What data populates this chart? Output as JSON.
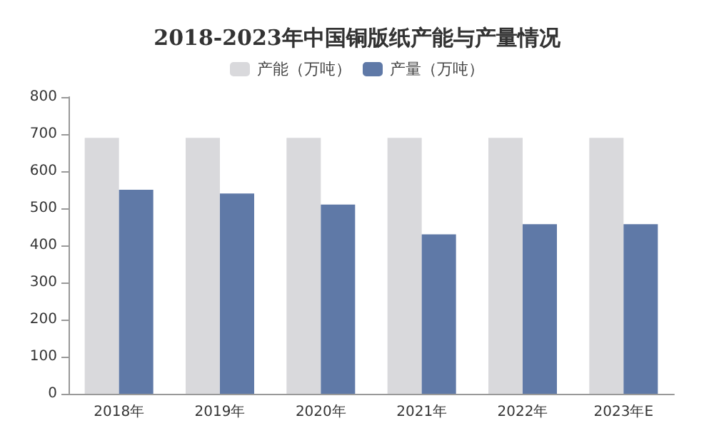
{
  "chart_data": {
    "type": "bar",
    "title": "2018-2023年中国铜版纸产能与产量情况",
    "categories": [
      "2018年",
      "2019年",
      "2020年",
      "2021年",
      "2022年",
      "2023年E"
    ],
    "series": [
      {
        "name": "产能（万吨）",
        "color": "#d9d9dc",
        "values": [
          690,
          690,
          690,
          690,
          690,
          690
        ]
      },
      {
        "name": "产量（万吨）",
        "color": "#5f79a7",
        "values": [
          550,
          540,
          510,
          430,
          457,
          457
        ]
      }
    ],
    "ylim": [
      0,
      800
    ],
    "yticks": [
      0,
      100,
      200,
      300,
      400,
      500,
      600,
      700,
      800
    ],
    "grid": false,
    "legend": "top"
  }
}
